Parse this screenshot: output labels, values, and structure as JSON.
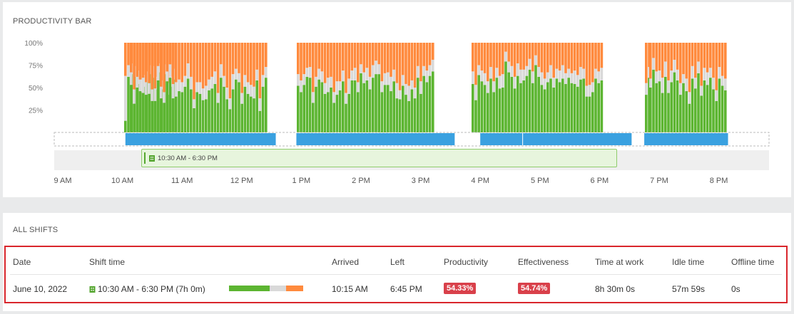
{
  "productivity_panel": {
    "title": "PRODUCTIVITY BAR",
    "y_ticks": [
      "100%",
      "75%",
      "50%",
      "25%"
    ],
    "x_ticks": [
      "9 AM",
      "10 AM",
      "11 AM",
      "12 PM",
      "1 PM",
      "2 PM",
      "3 PM",
      "4 PM",
      "5 PM",
      "6 PM",
      "7 PM",
      "8 PM"
    ],
    "shift_label": "10:30 AM - 6:30 PM"
  },
  "chart_data": {
    "type": "bar",
    "stacked": true,
    "ylim": [
      0,
      100
    ],
    "x_range": [
      "9:00 AM",
      "8:30 PM"
    ],
    "colors": {
      "productive": "#5cb531",
      "neutral": "#d9d9d9",
      "unproductive": "#ff8a3d",
      "activity": "#3aa1e0"
    },
    "activity_blocks": [
      [
        "10:03 AM",
        "12:35 PM"
      ],
      [
        "12:55 PM",
        "3:35 PM"
      ],
      [
        "4:00 PM",
        "4:43 PM"
      ],
      [
        "4:43 PM",
        "6:33 PM"
      ],
      [
        "6:45 PM",
        "8:10 PM"
      ]
    ],
    "productive": [
      13,
      62,
      65,
      62,
      54,
      45,
      51,
      56,
      65,
      61,
      48,
      67,
      48,
      65,
      42,
      51,
      59,
      53,
      32,
      50,
      46,
      44,
      42,
      43,
      35,
      35,
      58,
      38,
      33,
      57,
      61,
      38,
      40,
      46,
      45,
      51,
      60,
      48,
      27,
      45,
      43,
      36,
      37,
      47,
      49,
      54,
      33,
      61,
      51,
      37,
      26,
      48,
      59,
      56,
      32,
      51,
      43,
      40,
      38,
      58,
      24,
      51,
      61,
      52,
      45,
      53,
      62,
      61,
      33,
      51,
      59,
      56,
      43,
      45,
      50,
      33,
      42,
      47,
      57,
      32,
      43,
      58,
      58,
      45,
      66,
      55,
      58,
      48,
      61,
      65,
      65,
      45,
      53,
      53,
      46,
      57,
      38,
      37,
      52,
      42,
      35,
      48,
      38,
      61,
      43,
      63,
      56,
      63,
      68,
      54,
      36,
      64,
      57,
      53,
      44,
      60,
      45,
      61,
      49,
      50,
      79,
      67,
      62,
      49,
      63,
      55,
      58,
      63,
      70,
      55,
      75,
      62,
      53,
      48,
      56,
      60,
      50,
      60,
      56,
      60,
      54,
      61,
      55,
      54,
      51,
      59,
      60,
      40,
      40,
      45,
      60,
      55,
      58,
      42,
      61,
      50,
      70,
      55,
      57,
      44,
      62,
      44,
      56,
      67,
      58,
      42,
      55,
      46,
      32,
      60,
      49,
      66,
      41,
      58,
      53,
      61,
      48,
      35,
      60,
      52,
      47,
      39,
      58,
      59,
      56,
      50,
      51,
      62,
      54,
      52,
      33,
      57,
      39,
      47,
      44,
      61,
      73,
      66,
      63,
      60,
      48,
      52,
      46,
      57,
      53,
      29,
      53,
      55,
      40,
      15,
      15,
      80,
      64,
      64,
      58,
      74,
      79,
      50,
      48,
      60,
      61,
      53,
      58,
      55,
      63,
      53,
      64,
      58,
      31,
      63,
      46
    ],
    "neutral": [
      50,
      13,
      12,
      12,
      15,
      14,
      13,
      12,
      10,
      13,
      14,
      10,
      10,
      11,
      13,
      11,
      12,
      14,
      16,
      12,
      13,
      17,
      14,
      12,
      13,
      14,
      16,
      13,
      12,
      11,
      15,
      16,
      16,
      13,
      11,
      12,
      17,
      14,
      10,
      11,
      13,
      13,
      15,
      12,
      13,
      14,
      11,
      15,
      12,
      13,
      12,
      17,
      12,
      10,
      12,
      13,
      13,
      13,
      13,
      12,
      14,
      13,
      12,
      13,
      13,
      12,
      10,
      12,
      12,
      11,
      12,
      12,
      12,
      16,
      12,
      12,
      15,
      10,
      12,
      12,
      17,
      11,
      14,
      11,
      10,
      12,
      14,
      14,
      14,
      15,
      11,
      12,
      13,
      14,
      16,
      13,
      17,
      10,
      12,
      12,
      17,
      10,
      12,
      13,
      14,
      11,
      13,
      12,
      13,
      14,
      17,
      11,
      12,
      13,
      13,
      13,
      12,
      11,
      14,
      15,
      11,
      12,
      12,
      13,
      14,
      15,
      12,
      11,
      12,
      13,
      11,
      11,
      14,
      12,
      11,
      15,
      11,
      11,
      13,
      15,
      12,
      10,
      11,
      15,
      13,
      14,
      11,
      12,
      13,
      11,
      11,
      13,
      14,
      13,
      12,
      10,
      13,
      13,
      12,
      17,
      17,
      14,
      13,
      14,
      12,
      13,
      10,
      14,
      13,
      14,
      12,
      13,
      11,
      14,
      14,
      11,
      13,
      12,
      13,
      11,
      13,
      13,
      10,
      12,
      11,
      13,
      15,
      12,
      11,
      14,
      14,
      15,
      12,
      16,
      12,
      14,
      11,
      12,
      13,
      12,
      12,
      13,
      12,
      13,
      15,
      12,
      16,
      12,
      14,
      12,
      11,
      13,
      12,
      11,
      14,
      12,
      14,
      12,
      13,
      12,
      15,
      13,
      12,
      12,
      11,
      13,
      12,
      12,
      12,
      14,
      14
    ],
    "unproductive": [
      37,
      25,
      23,
      26,
      31,
      41,
      36,
      32,
      25,
      26,
      38,
      23,
      42,
      24,
      45,
      38,
      29,
      33,
      52,
      38,
      41,
      39,
      44,
      45,
      52,
      51,
      26,
      49,
      55,
      32,
      24,
      46,
      44,
      41,
      44,
      37,
      23,
      38,
      63,
      44,
      44,
      51,
      48,
      41,
      38,
      32,
      56,
      24,
      37,
      50,
      62,
      35,
      29,
      34,
      56,
      36,
      44,
      47,
      49,
      30,
      62,
      36,
      27,
      35,
      42,
      35,
      28,
      27,
      55,
      38,
      29,
      32,
      45,
      39,
      38,
      55,
      43,
      43,
      31,
      56,
      40,
      31,
      28,
      44,
      24,
      33,
      28,
      38,
      25,
      20,
      24,
      43,
      34,
      33,
      38,
      30,
      45,
      53,
      36,
      46,
      48,
      42,
      50,
      26,
      43,
      26,
      31,
      25,
      19,
      32,
      47,
      25,
      31,
      34,
      43,
      27,
      43,
      28,
      37,
      35,
      10,
      21,
      26,
      38,
      23,
      30,
      30,
      26,
      18,
      32,
      14,
      27,
      33,
      40,
      33,
      25,
      39,
      29,
      31,
      25,
      34,
      29,
      34,
      31,
      36,
      27,
      29,
      48,
      47,
      44,
      29,
      32,
      28,
      45,
      27,
      40,
      17,
      32,
      31,
      39,
      21,
      42,
      31,
      19,
      30,
      45,
      35,
      40,
      55,
      26,
      39,
      21,
      48,
      28,
      33,
      28,
      39,
      53,
      27,
      37,
      40,
      48,
      32,
      29,
      33,
      37,
      34,
      26,
      35,
      34,
      53,
      28,
      49,
      37,
      44,
      25,
      16,
      22,
      24,
      28,
      40,
      35,
      42,
      30,
      32,
      59,
      31,
      33,
      46,
      73,
      74,
      7,
      24,
      25,
      28,
      14,
      7,
      38,
      39,
      28,
      24,
      34,
      30,
      33,
      26,
      34,
      24,
      30,
      57,
      23,
      40
    ],
    "bar_slots": [
      [
        0,
        18
      ],
      [
        1,
        31
      ],
      [
        2,
        42
      ],
      [
        3,
        58
      ],
      [
        4,
        69
      ],
      [
        5,
        87
      ]
    ]
  },
  "shifts_panel": {
    "title": "ALL SHIFTS",
    "headers": {
      "date": "Date",
      "shift_time": "Shift time",
      "arrived": "Arrived",
      "left": "Left",
      "productivity": "Productivity",
      "effectiveness": "Effectiveness",
      "time_at_work": "Time at work",
      "idle_time": "Idle time",
      "offline_time": "Offline time"
    },
    "row": {
      "date": "June 10, 2022",
      "shift_time": "10:30 AM - 6:30 PM (7h 0m)",
      "arrived": "10:15 AM",
      "left": "6:45 PM",
      "productivity": "54.33%",
      "effectiveness": "54.74%",
      "time_at_work": "8h 30m 0s",
      "idle_time": "57m 59s",
      "offline_time": "0s",
      "breakdown": {
        "productive": 54.33,
        "neutral": 23.0,
        "unproductive": 22.67
      }
    }
  }
}
